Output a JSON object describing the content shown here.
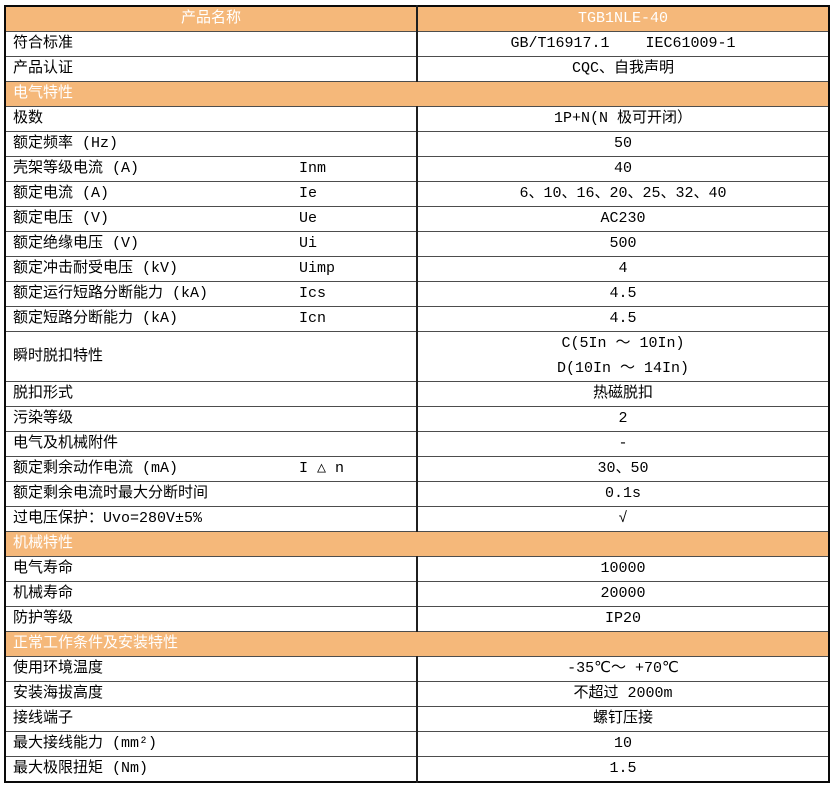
{
  "colors": {
    "section_bg": "#F5B87A",
    "section_text": "#FFFFFF",
    "grid_line": "#4D4D4D",
    "outer_border": "#0A0A0A",
    "body_text": "#000000"
  },
  "table": {
    "rows": [
      {
        "type": "title",
        "label": "产品名称",
        "value": "TGB1NLE-40"
      },
      {
        "type": "data",
        "label": "符合标准",
        "value": "GB/T16917.1    IEC61009-1"
      },
      {
        "type": "data",
        "label": "产品认证",
        "value": "CQC、自我声明"
      },
      {
        "type": "section",
        "label": "电气特性"
      },
      {
        "type": "data",
        "label": "极数",
        "value": "1P+N(N 极可开闭）"
      },
      {
        "type": "data",
        "label": "额定频率 (Hz)",
        "value": "50"
      },
      {
        "type": "data",
        "label": "壳架等级电流 (A)",
        "symbol": "Inm",
        "value": "40"
      },
      {
        "type": "data",
        "label": "额定电流 (A)",
        "symbol": "Ie",
        "value": "6、10、16、20、25、32、40"
      },
      {
        "type": "data",
        "label": "额定电压 (V)",
        "symbol": "Ue",
        "value": "AC230"
      },
      {
        "type": "data",
        "label": "额定绝缘电压 (V)",
        "symbol": "Ui",
        "value": "500"
      },
      {
        "type": "data",
        "label": "额定冲击耐受电压 (kV)",
        "symbol": "Uimp",
        "value": "4"
      },
      {
        "type": "data",
        "label": "额定运行短路分断能力 (kA)",
        "symbol": "Ics",
        "value": "4.5"
      },
      {
        "type": "data",
        "label": "额定短路分断能力 (kA)",
        "symbol": "Icn",
        "value": "4.5"
      },
      {
        "type": "data",
        "label": "瞬时脱扣特性",
        "values": [
          "C(5In ～ 10In)",
          "D(10In ～ 14In)"
        ]
      },
      {
        "type": "data",
        "label": "脱扣形式",
        "value": "热磁脱扣"
      },
      {
        "type": "data",
        "label": "污染等级",
        "value": "2"
      },
      {
        "type": "data",
        "label": "电气及机械附件",
        "value": "-"
      },
      {
        "type": "data",
        "label": "额定剩余动作电流 (mA)",
        "symbol": "I △ n",
        "value": "30、50"
      },
      {
        "type": "data",
        "label": "额定剩余电流时最大分断时间",
        "value": "0.1s"
      },
      {
        "type": "data",
        "label": "过电压保护：Uvo=280V±5%",
        "value": "√"
      },
      {
        "type": "section",
        "label": "机械特性"
      },
      {
        "type": "data",
        "label": "电气寿命",
        "value": "10000"
      },
      {
        "type": "data",
        "label": "机械寿命",
        "value": "20000"
      },
      {
        "type": "data",
        "label": "防护等级",
        "value": "IP20"
      },
      {
        "type": "section",
        "label": "正常工作条件及安装特性"
      },
      {
        "type": "data",
        "label": "使用环境温度",
        "value": "-35℃～ +70℃"
      },
      {
        "type": "data",
        "label": "安装海拔高度",
        "value": "不超过 2000m"
      },
      {
        "type": "data",
        "label": "接线端子",
        "value": "螺钉压接"
      },
      {
        "type": "data",
        "label": "最大接线能力 (mm²)",
        "value": "10"
      },
      {
        "type": "data",
        "label": "最大极限扭矩 (Nm)",
        "value": "1.5"
      }
    ]
  }
}
